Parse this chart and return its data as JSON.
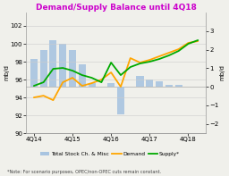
{
  "title": "Demand/Supply Balance until 4Q18",
  "title_color": "#cc00cc",
  "ylabel_left": "mb/d",
  "ylabel_right": "mb/d",
  "note": "*Note: For scenario purposes, OPEC/non-OPEC cuts remain constant.",
  "x_labels": [
    "4Q14",
    "4Q15",
    "4Q16",
    "4Q17",
    "4Q18"
  ],
  "x_tick_pos": [
    0,
    4,
    8,
    12,
    16
  ],
  "ylim_left": [
    90,
    103.5
  ],
  "ylim_right": [
    -2.5,
    4.0
  ],
  "yticks_left": [
    90,
    92,
    94,
    96,
    98,
    100,
    102
  ],
  "yticks_right": [
    -2.0,
    -1.0,
    0.0,
    1.0,
    2.0,
    3.0
  ],
  "n_bars": 18,
  "bar_x": [
    0,
    1,
    2,
    3,
    4,
    5,
    6,
    7,
    8,
    9,
    10,
    11,
    12,
    13,
    14,
    15,
    16,
    17
  ],
  "bar_values": [
    1.5,
    2.0,
    2.5,
    2.3,
    2.0,
    1.2,
    0.2,
    0.0,
    0.2,
    -1.5,
    0.0,
    0.6,
    0.4,
    0.3,
    0.1,
    0.1,
    0.0,
    0.0
  ],
  "bar_color": "#a8c4e0",
  "demand_x": [
    0,
    1,
    2,
    3,
    4,
    5,
    6,
    7,
    8,
    9,
    10,
    11,
    12,
    13,
    14,
    15,
    16,
    17
  ],
  "demand_y": [
    94.0,
    94.2,
    93.7,
    95.7,
    96.2,
    95.3,
    95.6,
    96.0,
    96.8,
    95.2,
    98.4,
    97.9,
    98.2,
    98.6,
    99.0,
    99.4,
    100.1,
    100.3
  ],
  "demand_color": "#ffa500",
  "supply_x": [
    0,
    1,
    2,
    3,
    4,
    5,
    6,
    7,
    8,
    9,
    10,
    11,
    12,
    13,
    14,
    15,
    16,
    17
  ],
  "supply_y": [
    95.3,
    95.7,
    97.2,
    97.3,
    97.0,
    96.5,
    96.2,
    95.7,
    97.9,
    96.5,
    97.4,
    97.8,
    98.0,
    98.3,
    98.7,
    99.2,
    100.0,
    100.4
  ],
  "supply_color": "#00aa00",
  "bg_color": "#f0f0eb",
  "grid_color": "#cccccc",
  "spine_color": "#999999"
}
